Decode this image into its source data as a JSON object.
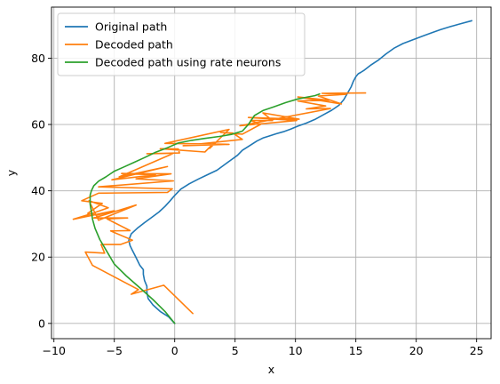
{
  "chart_data": {
    "type": "line",
    "title": "",
    "xlabel": "x",
    "ylabel": "y",
    "xlim": [
      -10.2,
      26.2
    ],
    "ylim": [
      -4.6,
      95.4
    ],
    "xticks": [
      -10,
      -5,
      0,
      5,
      10,
      15,
      20,
      25
    ],
    "xtick_labels": [
      "−10",
      "−5",
      "0",
      "5",
      "10",
      "15",
      "20",
      "25"
    ],
    "yticks": [
      0,
      20,
      40,
      60,
      80
    ],
    "ytick_labels": [
      "0",
      "20",
      "40",
      "60",
      "80"
    ],
    "grid": true,
    "legend_position": "upper-left",
    "series": [
      {
        "name": "Original path",
        "color": "#1f77b4",
        "x": [
          0,
          -0.5,
          -1.2,
          -1.8,
          -2.2,
          -2.3,
          -2.3,
          -2.5,
          -2.6,
          -2.6,
          -2.9,
          -3.1,
          -3.3,
          -3.5,
          -3.7,
          -3.8,
          -3.6,
          -3.1,
          -2.5,
          -1.9,
          -1.3,
          -0.8,
          -0.4,
          0,
          0.5,
          1.2,
          2.0,
          2.8,
          3.5,
          4.1,
          4.7,
          5.2,
          5.6,
          6.2,
          6.8,
          7.3,
          7.8,
          8.4,
          9.0,
          9.6,
          10.2,
          10.9,
          11.6,
          12.3,
          13.0,
          13.6,
          14.0,
          14.3,
          14.6,
          14.8,
          15.0,
          15.2,
          15.4,
          15.7,
          16.2,
          16.9,
          17.5,
          18.2,
          18.9,
          19.7,
          20.5,
          21.3,
          22.0,
          22.8,
          23.6,
          24.6
        ],
        "y": [
          0,
          2.0,
          3.6,
          5.6,
          7.5,
          9.4,
          11.2,
          13.0,
          14.8,
          16.2,
          17.6,
          19.1,
          20.6,
          22.0,
          23.5,
          25.1,
          27.0,
          28.7,
          30.4,
          32.0,
          33.6,
          35.3,
          36.9,
          38.6,
          40.5,
          42.1,
          43.6,
          45.0,
          46.2,
          47.8,
          49.4,
          50.7,
          52.2,
          53.6,
          55.0,
          55.9,
          56.5,
          57.2,
          57.8,
          58.6,
          59.5,
          60.4,
          61.5,
          62.9,
          64.3,
          65.8,
          67.5,
          69.4,
          71.3,
          73.1,
          74.4,
          75.3,
          75.7,
          76.4,
          77.8,
          79.5,
          81.3,
          83.1,
          84.4,
          85.5,
          86.6,
          87.7,
          88.6,
          89.5,
          90.3,
          91.3
        ]
      },
      {
        "name": "Decoded path",
        "color": "#ff7f0e",
        "x": [
          1.5,
          -0.9,
          -3.6,
          -3.0,
          -6.8,
          -7.4,
          -5.8,
          -6.1,
          -4.5,
          -3.5,
          -5.3,
          -3.7,
          -5.6,
          -3.9,
          -6.7,
          -3.2,
          -6.3,
          -7.1,
          -5.5,
          -6.8,
          -8.4,
          -5.0,
          -6.4,
          -7.2,
          -6.0,
          -7.7,
          -6.3,
          -0.6,
          -0.2,
          -6.3,
          -0.1,
          -3.2,
          -0.3,
          -4.4,
          -1.6,
          -5.2,
          -0.6,
          -4.6,
          -0.1,
          -2.3,
          0.4,
          0.3,
          -1.2,
          2.5,
          3.3,
          2.9,
          4.5,
          -0.8,
          4.5,
          0.7,
          5.6,
          4.8,
          3.8,
          5.6,
          7.1,
          6.3,
          8.1,
          7.3,
          10.3,
          6.1,
          10.1,
          5.4,
          12.9,
          10.9,
          12.5,
          10.2,
          12.8,
          10.2,
          13.8,
          11.9,
          14.2,
          12.2,
          15.8
        ],
        "y": [
          3.0,
          11.5,
          8.8,
          10.2,
          17.5,
          21.5,
          21.2,
          23.8,
          23.8,
          25.1,
          27.9,
          28.0,
          31.5,
          31.8,
          31.8,
          35.7,
          31.1,
          37.0,
          34.9,
          33.2,
          31.4,
          34.0,
          32.7,
          33.2,
          36.2,
          37.0,
          39.3,
          39.5,
          40.6,
          41.2,
          43.0,
          43.6,
          45.1,
          45.2,
          44.8,
          43.3,
          47.3,
          44.2,
          51.3,
          51.2,
          51.4,
          52.6,
          52.7,
          51.7,
          54.6,
          52.8,
          58.5,
          54.3,
          54.0,
          53.6,
          55.5,
          57.4,
          57.6,
          57.1,
          60.0,
          61.2,
          61.2,
          63.5,
          61.6,
          62.1,
          61.2,
          59.6,
          64.8,
          64.7,
          65.6,
          67.1,
          67.3,
          68.3,
          66.2,
          68.6,
          69.1,
          69.4,
          69.5
        ]
      },
      {
        "name": "Decoded path using rate neurons",
        "color": "#2ca02c",
        "x": [
          0,
          -0.8,
          -1.8,
          -2.9,
          -4.0,
          -5.0,
          -5.6,
          -6.2,
          -6.6,
          -6.8,
          -6.9,
          -7.0,
          -7.0,
          -7.0,
          -6.9,
          -6.7,
          -6.3,
          -5.7,
          -5.0,
          -4.2,
          -3.4,
          -2.5,
          -1.6,
          -0.6,
          0.3,
          1.4,
          2.5,
          3.7,
          4.7,
          5.6,
          6.1,
          6.6,
          7.3,
          8.2,
          9.2,
          10.2,
          11.0,
          11.6,
          12.0
        ],
        "y": [
          0,
          3.6,
          7.2,
          10.8,
          14.3,
          17.9,
          21.6,
          25.3,
          28.7,
          31.4,
          33.8,
          35.9,
          37.3,
          38.7,
          40.0,
          41.5,
          42.9,
          44.2,
          45.9,
          47.2,
          48.5,
          50.0,
          51.6,
          53.0,
          54.4,
          55.2,
          55.8,
          56.4,
          57.0,
          58.0,
          60.0,
          62.7,
          64.2,
          65.3,
          66.6,
          67.7,
          68.3,
          68.7,
          69.2
        ]
      }
    ]
  }
}
